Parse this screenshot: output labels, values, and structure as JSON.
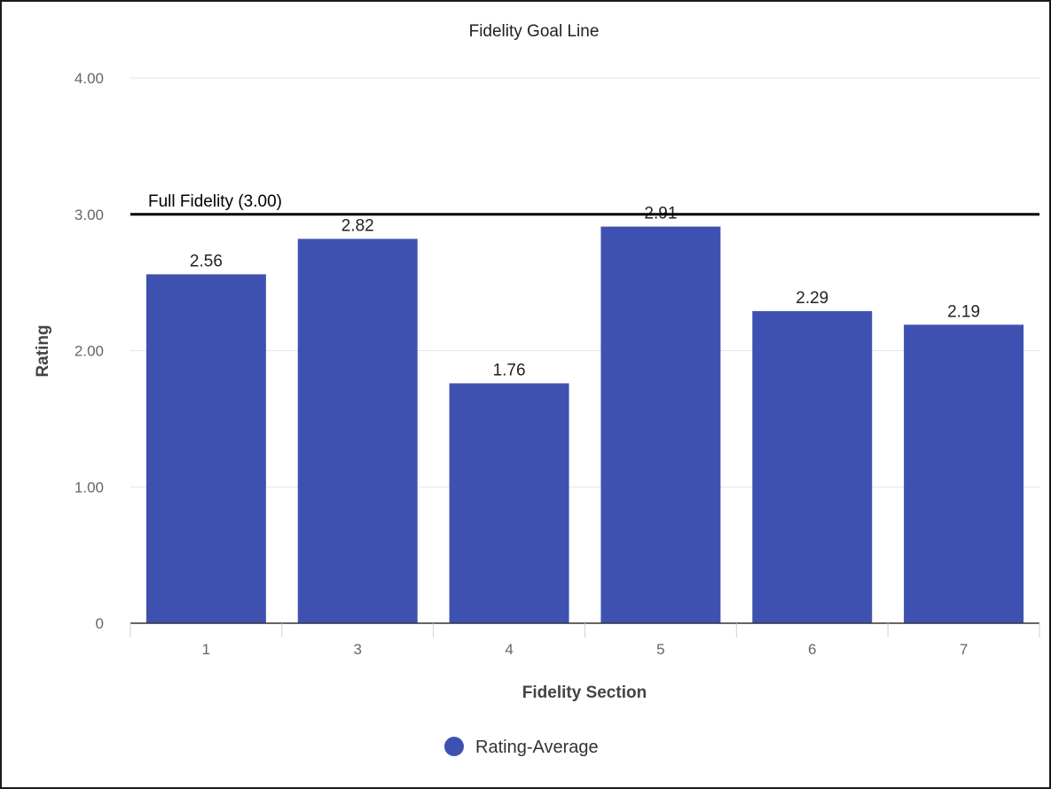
{
  "chart_data": {
    "type": "bar",
    "title": "Fidelity Goal Line",
    "xlabel": "Fidelity Section",
    "ylabel": "Rating",
    "categories": [
      "1",
      "3",
      "4",
      "5",
      "6",
      "7"
    ],
    "series": [
      {
        "name": "Rating-Average",
        "values": [
          2.56,
          2.82,
          1.76,
          2.91,
          2.29,
          2.19
        ],
        "data_labels": [
          "2.56",
          "2.82",
          "1.76",
          "2.91",
          "2.29",
          "2.19"
        ]
      }
    ],
    "ylim": [
      0,
      4
    ],
    "yticks": [
      {
        "value": 0,
        "label": "0"
      },
      {
        "value": 1,
        "label": "1.00"
      },
      {
        "value": 2,
        "label": "2.00"
      },
      {
        "value": 3,
        "label": "3.00"
      },
      {
        "value": 4,
        "label": "4.00"
      }
    ],
    "goal_line": {
      "value": 3.0,
      "label": "Full Fidelity (3.00)"
    },
    "grid": true,
    "legend_position": "bottom-center",
    "colors": {
      "bar": "#3f51b0",
      "goal_line": "#000000",
      "grid": "#e6e6e6",
      "axis": "#333333",
      "tick_text": "#666666",
      "label_text": "#222222"
    }
  }
}
